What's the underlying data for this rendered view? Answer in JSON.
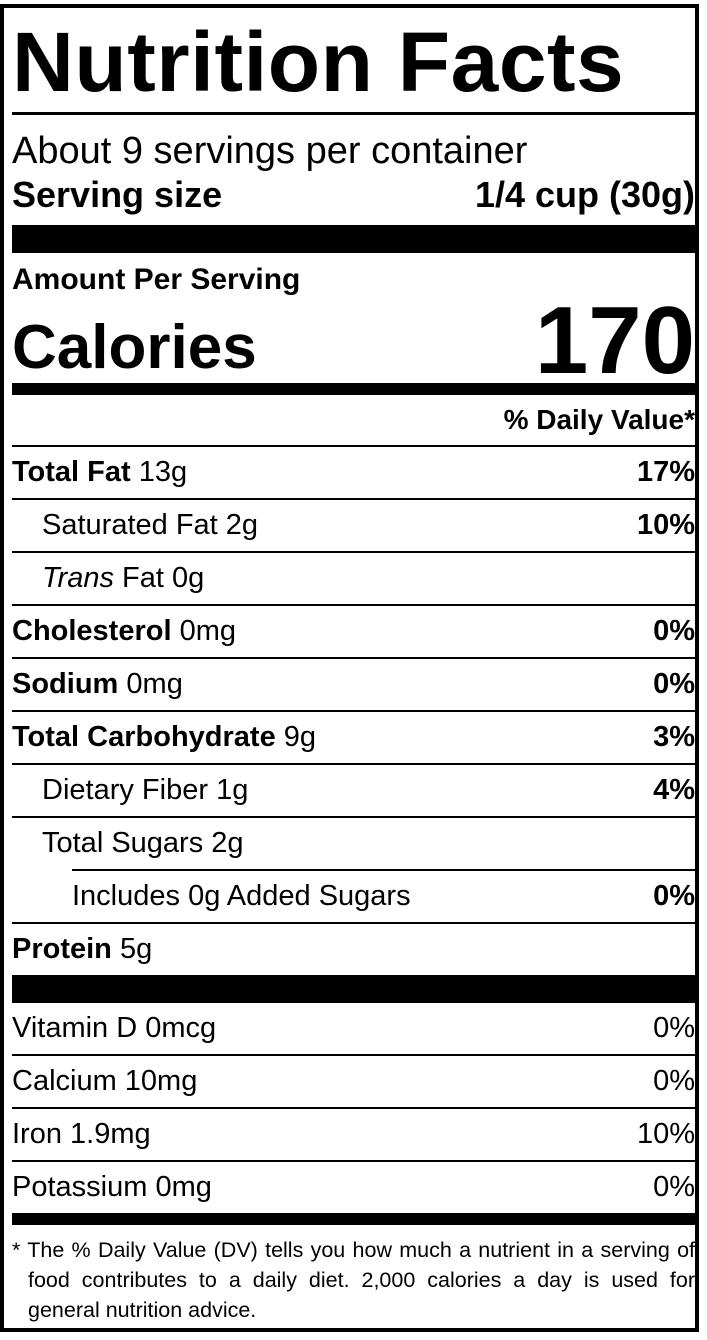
{
  "title": "Nutrition Facts",
  "servings_per_container": "About 9 servings per container",
  "serving_size": {
    "label": "Serving size",
    "value": "1/4 cup (30g)"
  },
  "amount_per_serving": "Amount Per Serving",
  "calories": {
    "label": "Calories",
    "value": "170"
  },
  "daily_value_header": "% Daily Value*",
  "nutrients": [
    {
      "name": "Total Fat",
      "amount": "13g",
      "dv": "17%"
    },
    {
      "name": "Saturated Fat",
      "amount": "2g",
      "dv": "10%"
    },
    {
      "name_italic": "Trans",
      "name": "Fat",
      "amount": "0g",
      "dv": ""
    },
    {
      "name": "Cholesterol",
      "amount": "0mg",
      "dv": "0%"
    },
    {
      "name": "Sodium",
      "amount": "0mg",
      "dv": "0%"
    },
    {
      "name": "Total Carbohydrate",
      "amount": "9g",
      "dv": "3%"
    },
    {
      "name": "Dietary Fiber",
      "amount": "1g",
      "dv": "4%"
    },
    {
      "name": "Total Sugars",
      "amount": "2g",
      "dv": ""
    },
    {
      "name": "Includes 0g Added Sugars",
      "dv": "0%"
    },
    {
      "name": "Protein",
      "amount": "5g",
      "dv": ""
    }
  ],
  "minerals": [
    {
      "name": "Vitamin D 0mcg",
      "dv": "0%"
    },
    {
      "name": "Calcium 10mg",
      "dv": "0%"
    },
    {
      "name": "Iron 1.9mg",
      "dv": "10%"
    },
    {
      "name": "Potassium 0mg",
      "dv": "0%"
    }
  ],
  "footnote": "* The % Daily Value (DV) tells you how much a nutrient in a serving of food contributes to a daily diet. 2,000 calories a day is used for general nutrition advice."
}
